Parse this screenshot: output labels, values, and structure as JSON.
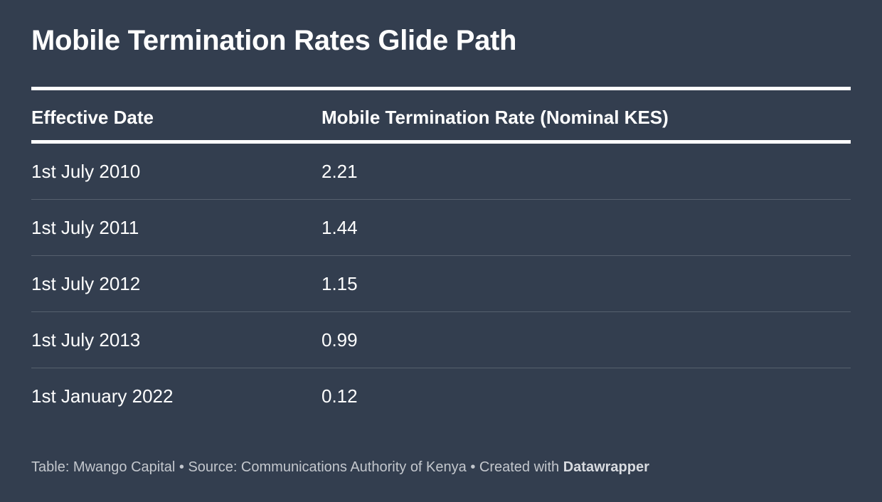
{
  "title": "Mobile Termination Rates Glide Path",
  "chart_data": {
    "type": "table",
    "title": "Mobile Termination Rates Glide Path",
    "columns": [
      "Effective Date",
      "Mobile Termination Rate (Nominal KES)"
    ],
    "rows": [
      [
        "1st July 2010",
        "2.21"
      ],
      [
        "1st July 2011",
        "1.44"
      ],
      [
        "1st July 2012",
        "1.15"
      ],
      [
        "1st July 2013",
        "0.99"
      ],
      [
        "1st January 2022",
        "0.12"
      ]
    ]
  },
  "footer": {
    "text": "Table: Mwango Capital • Source: Communications Authority of Kenya • Created with ",
    "brand": "Datawrapper"
  },
  "colors": {
    "background": "#333e4f",
    "text": "#ffffff",
    "footer_text": "#c3c7cd",
    "row_divider": "#56606e"
  }
}
